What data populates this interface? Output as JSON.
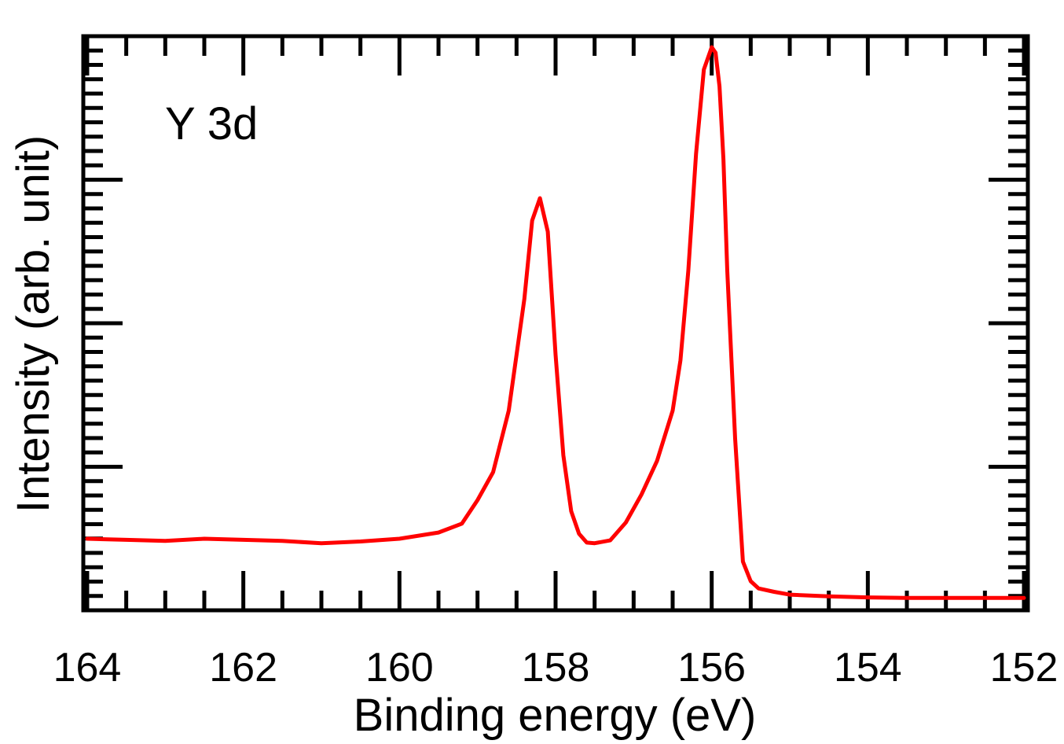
{
  "chart_data": {
    "type": "line",
    "title": "",
    "annotation": "Y 3d",
    "xlabel": "Binding energy (eV)",
    "ylabel": "Intensity (arb. unit)",
    "xlim": [
      164.05,
      151.95
    ],
    "ylim": [
      0,
      1
    ],
    "x_reversed": true,
    "x_ticks": [
      164,
      162,
      160,
      158,
      156,
      154,
      152
    ],
    "x_tick_labels": [
      "164",
      "162",
      "160",
      "158",
      "156",
      "154",
      "152"
    ],
    "y_tick_labels": [],
    "grid": false,
    "legend": "none",
    "series": [
      {
        "color": "#ff0000",
        "x": [
          164.0,
          163.5,
          163.0,
          162.5,
          162.0,
          161.5,
          161.0,
          160.5,
          160.0,
          159.5,
          159.2,
          159.0,
          158.8,
          158.6,
          158.4,
          158.3,
          158.2,
          158.1,
          158.0,
          157.9,
          157.8,
          157.7,
          157.6,
          157.5,
          157.3,
          157.1,
          156.9,
          156.7,
          156.5,
          156.4,
          156.3,
          156.2,
          156.1,
          156.0,
          155.95,
          155.9,
          155.85,
          155.8,
          155.7,
          155.6,
          155.5,
          155.4,
          155.2,
          155.0,
          154.5,
          154.0,
          153.5,
          153.0,
          152.5,
          152.0
        ],
        "y": [
          0.121,
          0.119,
          0.117,
          0.121,
          0.119,
          0.117,
          0.113,
          0.116,
          0.121,
          0.132,
          0.148,
          0.19,
          0.24,
          0.35,
          0.55,
          0.69,
          0.73,
          0.67,
          0.45,
          0.27,
          0.17,
          0.13,
          0.114,
          0.113,
          0.118,
          0.15,
          0.2,
          0.26,
          0.35,
          0.44,
          0.6,
          0.81,
          0.96,
          1.0,
          0.99,
          0.93,
          0.8,
          0.6,
          0.3,
          0.08,
          0.045,
          0.032,
          0.026,
          0.021,
          0.018,
          0.016,
          0.015,
          0.015,
          0.015,
          0.015
        ]
      }
    ]
  }
}
